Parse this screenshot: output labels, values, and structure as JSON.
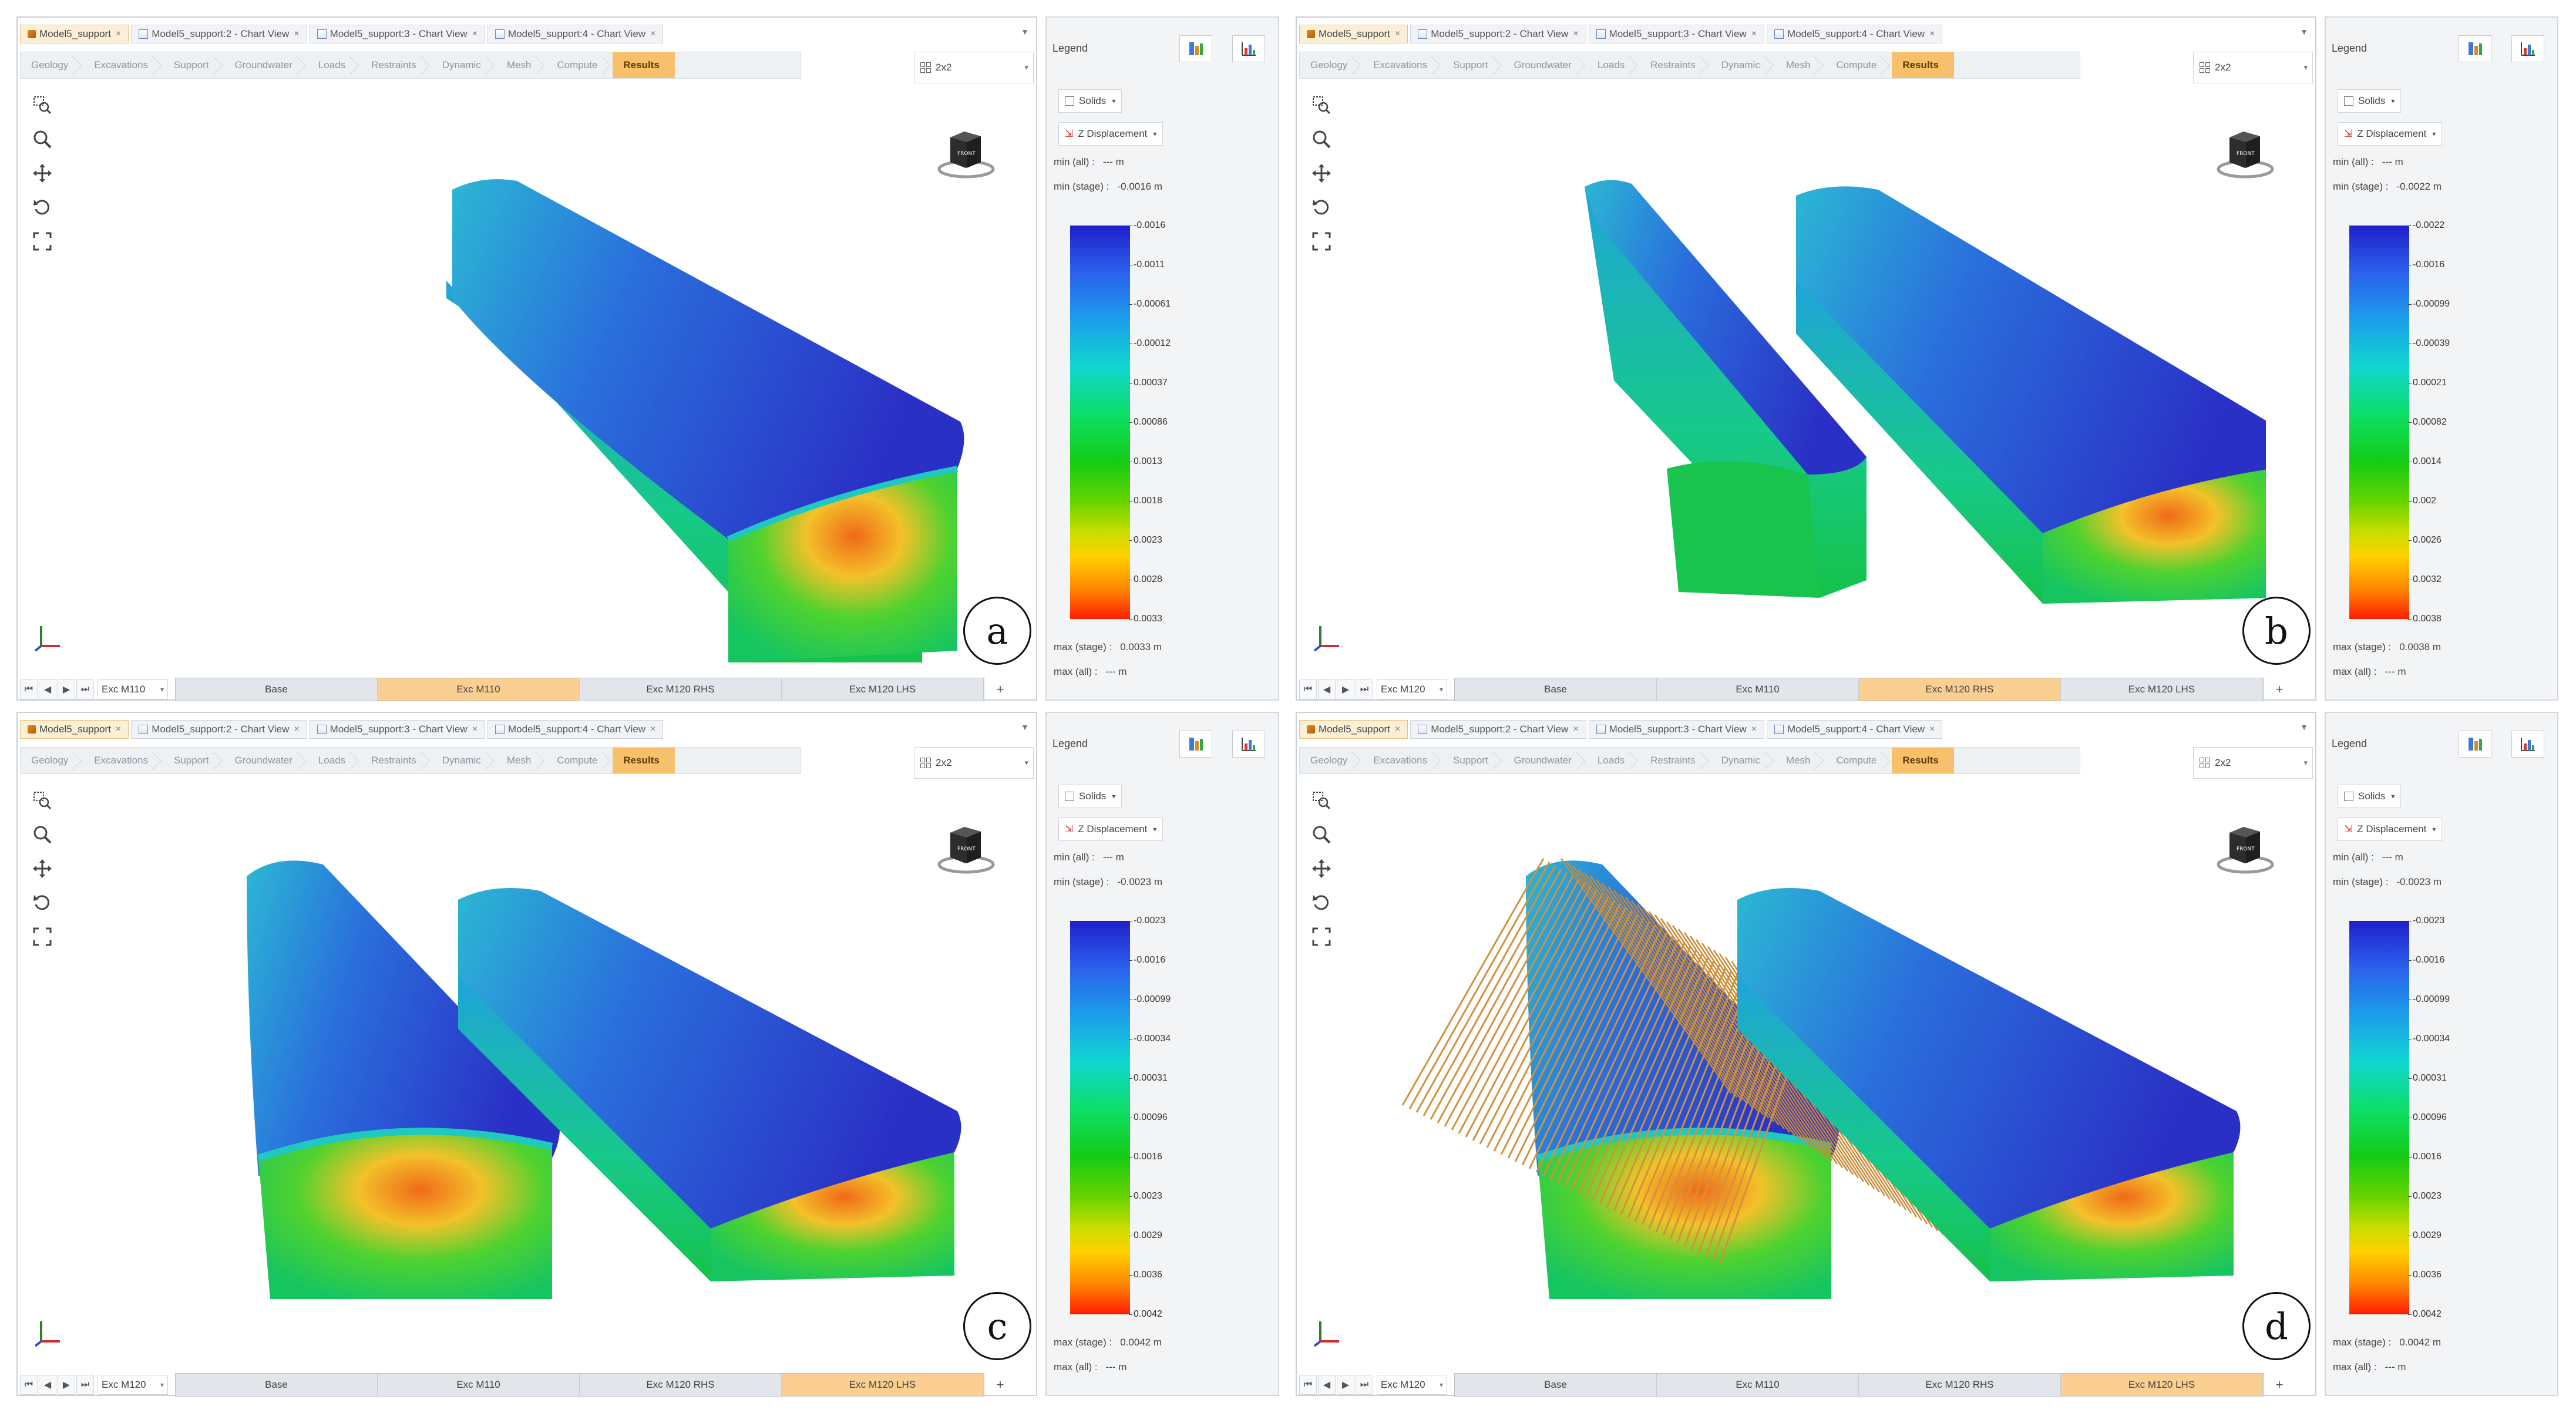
{
  "tab_labels": [
    "Model5_support",
    "Model5_support:2 - Chart View",
    "Model5_support:3 - Chart View",
    "Model5_support:4 - Chart View"
  ],
  "workflow_steps": [
    "Geology",
    "Excavations",
    "Support",
    "Groundwater",
    "Loads",
    "Restraints",
    "Dynamic",
    "Mesh",
    "Compute",
    "Results"
  ],
  "layout": "2x2",
  "stage_buttons": [
    "Base",
    "Exc M110",
    "Exc M120 RHS",
    "Exc M120 LHS"
  ],
  "legend": {
    "title": "Legend",
    "solids": "Solids",
    "quantity": "Z Displacement",
    "min_all_label": "min (all) :",
    "max_all_label": "max (all) :",
    "min_stage_label": "min (stage) :",
    "max_stage_label": "max (stage) :",
    "all_value": "--- m"
  },
  "panels": [
    {
      "label": "a",
      "stage_select": "Exc M110",
      "active_stage": 1,
      "min_stage": "-0.0016 m",
      "max_stage": "0.0033 m",
      "ticks": [
        "-0.0016",
        "-0.0011",
        "-0.00061",
        "-0.00012",
        "0.00037",
        "0.00086",
        "0.0013",
        "0.0018",
        "0.0023",
        "0.0028",
        "0.0033"
      ]
    },
    {
      "label": "b",
      "stage_select": "Exc M120",
      "active_stage": 2,
      "min_stage": "-0.0022 m",
      "max_stage": "0.0038 m",
      "ticks": [
        "-0.0022",
        "-0.0016",
        "-0.00099",
        "-0.00039",
        "0.00021",
        "0.00082",
        "0.0014",
        "0.002",
        "0.0026",
        "0.0032",
        "0.0038"
      ]
    },
    {
      "label": "c",
      "stage_select": "Exc M120",
      "active_stage": 3,
      "min_stage": "-0.0023 m",
      "max_stage": "0.0042 m",
      "ticks": [
        "-0.0023",
        "-0.0016",
        "-0.00099",
        "-0.00034",
        "0.00031",
        "0.00096",
        "0.0016",
        "0.0023",
        "0.0029",
        "0.0036",
        "0.0042"
      ]
    },
    {
      "label": "d",
      "stage_select": "Exc M120",
      "active_stage": 3,
      "min_stage": "-0.0023 m",
      "max_stage": "0.0042 m",
      "ticks": [
        "-0.0023",
        "-0.0016",
        "-0.00099",
        "-0.00034",
        "0.00031",
        "0.00096",
        "0.0016",
        "0.0023",
        "0.0029",
        "0.0036",
        "0.0042"
      ]
    }
  ]
}
